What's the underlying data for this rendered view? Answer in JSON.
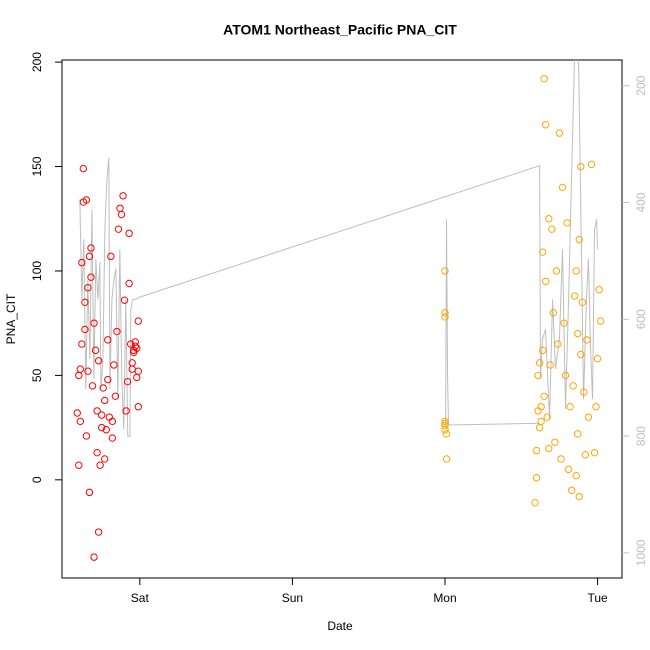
{
  "chart_data": {
    "type": "scatter",
    "title": "ATOM1 Northeast_Pacific PNA_CIT",
    "xlabel": "Date",
    "ylabel": "PNA_CIT",
    "xlim": [
      -0.51,
      3.16
    ],
    "xticks": [
      {
        "value": 0,
        "label": "Sat"
      },
      {
        "value": 1,
        "label": "Sun"
      },
      {
        "value": 2,
        "label": "Mon"
      },
      {
        "value": 3,
        "label": "Tue"
      }
    ],
    "ylim": [
      -47,
      201
    ],
    "yticks": [
      0,
      50,
      100,
      150,
      200
    ],
    "y2lim": [
      1043,
      156
    ],
    "y2ticks": [
      200,
      400,
      600,
      800,
      1000
    ],
    "series": [
      {
        "type": "scatter",
        "color": "#ff0000",
        "x": [
          -0.41,
          -0.4,
          -0.4,
          -0.39,
          -0.39,
          -0.38,
          -0.38,
          -0.37,
          -0.37,
          -0.36,
          -0.36,
          -0.35,
          -0.35,
          -0.34,
          -0.34,
          -0.33,
          -0.33,
          -0.32,
          -0.32,
          -0.31,
          -0.3,
          -0.3,
          -0.29,
          -0.28,
          -0.28,
          -0.27,
          -0.27,
          -0.26,
          -0.25,
          -0.25,
          -0.24,
          -0.23,
          -0.23,
          -0.22,
          -0.21,
          -0.21,
          -0.2,
          -0.19,
          -0.18,
          -0.18,
          -0.17,
          -0.16,
          -0.15,
          -0.14,
          -0.13,
          -0.12,
          -0.11,
          -0.1,
          -0.09,
          -0.08,
          -0.07,
          -0.07,
          -0.06,
          -0.05,
          -0.05,
          -0.04,
          -0.04,
          -0.03,
          -0.03,
          -0.02,
          -0.02,
          -0.01,
          -0.01,
          -0.01
        ],
        "values": [
          32,
          7,
          50,
          28,
          53,
          65,
          104,
          133,
          149,
          85,
          72,
          134,
          21,
          92,
          52,
          107,
          -6,
          111,
          97,
          45,
          -37,
          75,
          62,
          33,
          13,
          57,
          -25,
          7,
          25,
          31,
          44,
          38,
          10,
          24,
          48,
          67,
          30,
          107,
          20,
          28,
          55,
          40,
          71,
          120,
          130,
          127,
          136,
          86,
          33,
          47,
          118,
          94,
          65,
          53,
          56,
          61,
          62,
          64,
          66,
          63,
          49,
          52,
          76,
          35
        ]
      },
      {
        "type": "scatter",
        "color": "#ffa500",
        "x": [
          2.0,
          2.0,
          2.0,
          2.0,
          2.0,
          2.0,
          2.0,
          2.01,
          2.01,
          2.59,
          2.6,
          2.6,
          2.61,
          2.61,
          2.62,
          2.62,
          2.63,
          2.63,
          2.64,
          2.64,
          2.65,
          2.65,
          2.66,
          2.66,
          2.67,
          2.68,
          2.68,
          2.69,
          2.7,
          2.71,
          2.72,
          2.73,
          2.74,
          2.75,
          2.76,
          2.77,
          2.78,
          2.79,
          2.8,
          2.81,
          2.82,
          2.83,
          2.84,
          2.85,
          2.86,
          2.86,
          2.87,
          2.87,
          2.88,
          2.88,
          2.89,
          2.89,
          2.9,
          2.91,
          2.92,
          2.93,
          2.94,
          2.96,
          2.98,
          2.99,
          3.0,
          3.01,
          3.02
        ],
        "values": [
          100,
          80,
          78,
          28,
          27,
          26,
          24,
          22,
          10,
          -11,
          1,
          14,
          33,
          50,
          25,
          56,
          28,
          35,
          109,
          62,
          40,
          192,
          170,
          95,
          30,
          125,
          15,
          55,
          120,
          80,
          18,
          100,
          65,
          166,
          10,
          140,
          75,
          50,
          123,
          5,
          35,
          -5,
          45,
          88,
          2,
          100,
          70,
          22,
          115,
          -8,
          60,
          150,
          85,
          42,
          12,
          67,
          30,
          151,
          13,
          35,
          58,
          91,
          76
        ]
      },
      {
        "type": "line",
        "axis": "y2",
        "color": "#bebebe",
        "x": [
          -0.393,
          -0.38,
          -0.367,
          -0.354,
          -0.341,
          -0.327,
          -0.314,
          -0.301,
          -0.288,
          -0.275,
          -0.262,
          -0.255,
          -0.242,
          -0.229,
          -0.216,
          -0.203,
          -0.196,
          -0.183,
          -0.17,
          -0.157,
          -0.144,
          -0.131,
          -0.118,
          -0.105,
          -0.092,
          -0.079,
          -0.065,
          -0.059,
          -0.046,
          -0.026,
          0,
          2.62,
          2.626,
          2.639,
          2.659,
          2.685,
          2.705,
          2.724,
          2.75,
          2.77,
          2.79,
          2.81,
          2.829,
          2.849,
          2.862,
          2.875,
          2.894,
          2.908,
          2.927,
          2.94,
          2.954,
          2.967,
          2.98,
          2.993,
          3.0
        ],
        "values": [
          395,
          566,
          463,
          720,
          532,
          668,
          412,
          702,
          497,
          566,
          502,
          720,
          668,
          446,
          361,
          323,
          720,
          566,
          532,
          514,
          737,
          480,
          702,
          788,
          566,
          800,
          800,
          583,
          566,
          566,
          562,
          337,
          702,
          634,
          617,
          771,
          566,
          685,
          634,
          480,
          754,
          566,
          361,
          150,
          150,
          150,
          480,
          737,
          566,
          497,
          651,
          737,
          446,
          429,
          480
        ]
      },
      {
        "type": "line",
        "axis": "y2",
        "color": "#bebebe",
        "x": [
          2.004,
          2.01,
          2.017,
          2.023,
          2.62
        ],
        "values": [
          785,
          429,
          702,
          781,
          778
        ]
      }
    ]
  }
}
